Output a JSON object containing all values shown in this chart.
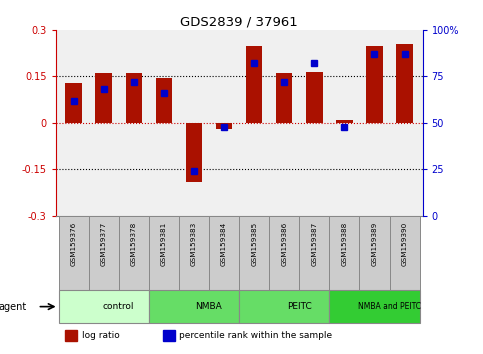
{
  "title": "GDS2839 / 37961",
  "samples": [
    "GSM159376",
    "GSM159377",
    "GSM159378",
    "GSM159381",
    "GSM159383",
    "GSM159384",
    "GSM159385",
    "GSM159386",
    "GSM159387",
    "GSM159388",
    "GSM159389",
    "GSM159390"
  ],
  "log_ratio": [
    0.13,
    0.16,
    0.16,
    0.145,
    -0.19,
    -0.02,
    0.25,
    0.16,
    0.165,
    0.01,
    0.25,
    0.255
  ],
  "percentile_rank": [
    62,
    68,
    72,
    66,
    24,
    48,
    82,
    72,
    82,
    48,
    87,
    87
  ],
  "groups": [
    {
      "label": "control",
      "start": 0,
      "end": 3,
      "color": "#ccffcc"
    },
    {
      "label": "NMBA",
      "start": 3,
      "end": 6,
      "color": "#66dd66"
    },
    {
      "label": "PEITC",
      "start": 6,
      "end": 9,
      "color": "#66dd66"
    },
    {
      "label": "NMBA and PEITC",
      "start": 9,
      "end": 12,
      "color": "#33cc33"
    }
  ],
  "bar_color": "#aa1100",
  "dot_color": "#0000cc",
  "ylim_left": [
    -0.3,
    0.3
  ],
  "ylim_right": [
    0,
    100
  ],
  "yticks_left": [
    -0.3,
    -0.15,
    0,
    0.15,
    0.3
  ],
  "yticks_right": [
    0,
    25,
    50,
    75,
    100
  ],
  "left_tick_labels": [
    "-0.3",
    "-0.15",
    "0",
    "0.15",
    "0.3"
  ],
  "right_tick_labels": [
    "0",
    "25",
    "50",
    "75",
    "100%"
  ],
  "bar_color_left_axis": "#cc0000",
  "dot_color_right_axis": "#0000cc",
  "background_plot": "#f0f0f0",
  "background_samples": "#cccccc",
  "bar_width": 0.55,
  "group_colors": [
    "#ccffcc",
    "#66dd66",
    "#66dd66",
    "#33cc33"
  ],
  "agent_label": "agent"
}
